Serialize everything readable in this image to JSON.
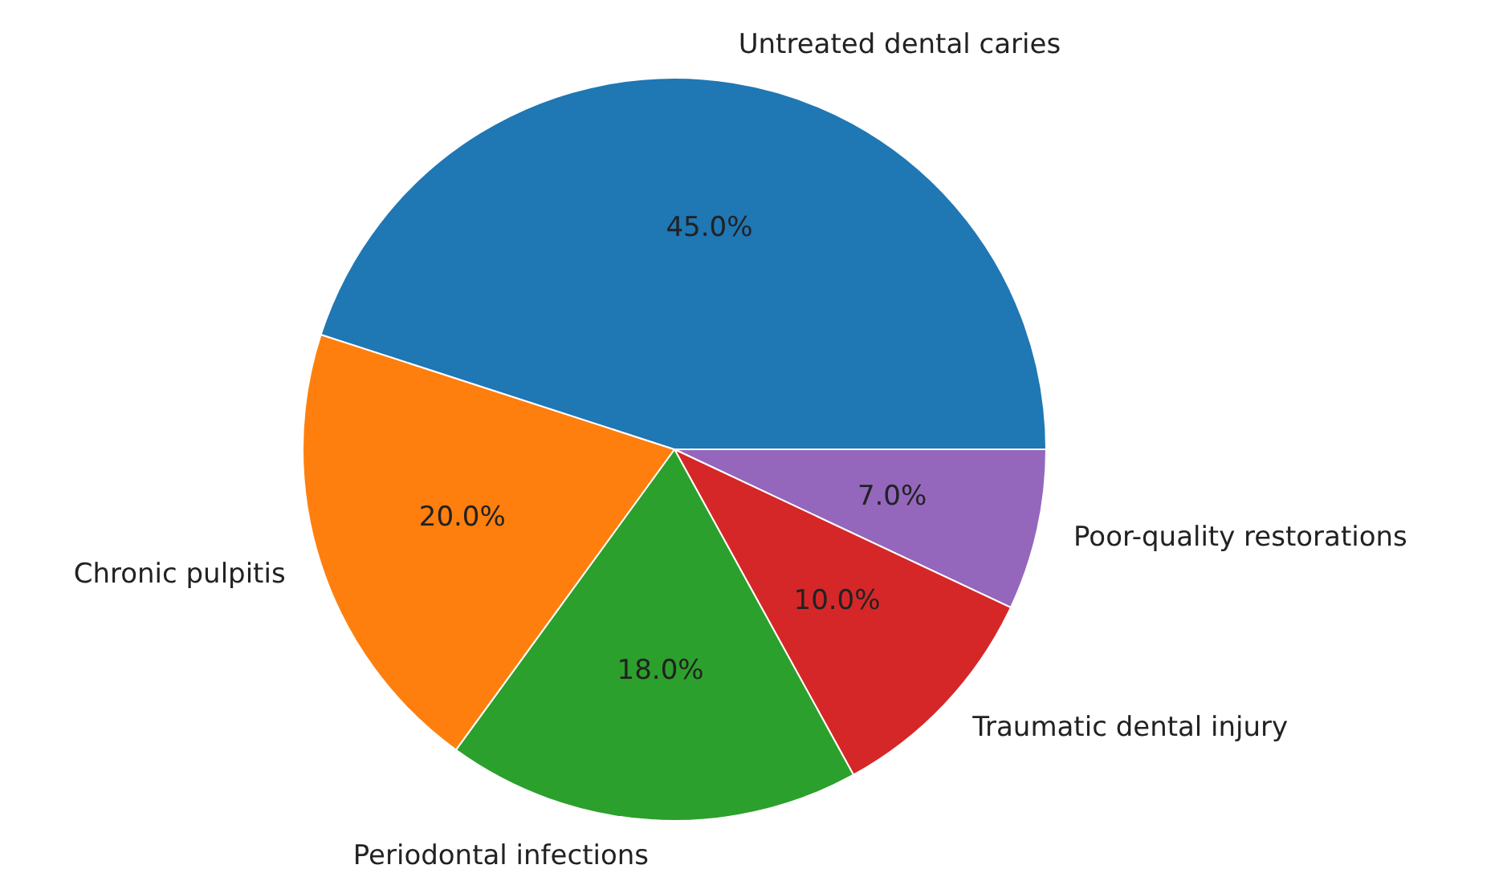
{
  "chart_data": {
    "type": "pie",
    "categories": [
      "Untreated dental caries",
      "Chronic pulpitis",
      "Periodontal infections",
      "Traumatic dental injury",
      "Poor-quality restorations"
    ],
    "values": [
      45,
      20,
      18,
      10,
      7
    ],
    "colors": [
      "#1f77b4",
      "#ff7f0e",
      "#2ca02c",
      "#d62728",
      "#9467bd"
    ],
    "value_labels": [
      "45.0%",
      "20.0%",
      "18.0%",
      "10.0%",
      "7.0%"
    ],
    "legend": false
  }
}
